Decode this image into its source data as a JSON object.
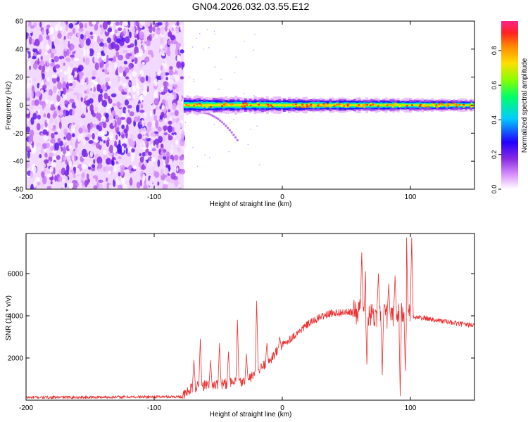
{
  "colors": {
    "snr_line": "#ee3030",
    "colormap": [
      "#ffffff",
      "#dd99ff",
      "#8a2be2",
      "#2200ff",
      "#00ccff",
      "#00ff66",
      "#88ff00",
      "#ffdd00",
      "#ff8800",
      "#ff2222",
      "#ff2288"
    ]
  },
  "chart_data": [
    {
      "type": "heatmap",
      "title": "GN04.2026.032.03.55.E12",
      "xlabel": "Height of straight line (km)",
      "ylabel": "Frequency (Hz)",
      "xlim": [
        -200,
        150
      ],
      "ylim": [
        -60,
        60
      ],
      "xticks": [
        -200,
        -100,
        0,
        100
      ],
      "xtick_labels": [
        "-200",
        "-100",
        "0",
        "100"
      ],
      "yticks": [
        -60,
        -40,
        -20,
        0,
        20,
        40,
        60
      ],
      "ytick_labels": [
        "-60",
        "-40",
        "-20",
        "0",
        "20",
        "40",
        "60"
      ],
      "noise_region_x": [
        -200,
        -77
      ],
      "noise_region_amplitude_range": [
        0.0,
        0.25
      ],
      "signal_band": {
        "x_start": -77,
        "x_end": 150,
        "center_freq_hz": 0,
        "halfwidth_hz_start": 6,
        "halfwidth_hz_end": 4,
        "peak_amplitude": 0.95
      },
      "secondary_streak": {
        "x_start": -65,
        "x_end": -35,
        "freq_start_hz": -5,
        "freq_end_hz": -25
      },
      "colorbar": {
        "label": "Normalized spectral amplitude",
        "range": [
          0,
          0.97
        ],
        "ticks": [
          0.0,
          0.2,
          0.4,
          0.6,
          0.8
        ],
        "tick_labels": [
          "0.0",
          "0.2",
          "0.4",
          "0.6",
          "0.8"
        ]
      }
    },
    {
      "type": "line",
      "xlabel": "Height of straight line (km)",
      "ylabel": "SNR (10 * v/v)",
      "xlim": [
        -200,
        150
      ],
      "ylim": [
        0,
        7900
      ],
      "xticks": [
        -200,
        -100,
        0,
        100
      ],
      "xtick_labels": [
        "-200",
        "-100",
        "0",
        "100"
      ],
      "yticks": [
        2000,
        4000,
        6000
      ],
      "ytick_labels": [
        "2000",
        "4000",
        "6000"
      ],
      "series": [
        {
          "name": "SNR",
          "x": [
            -200,
            -150,
            -100,
            -78,
            -70,
            -60,
            -50,
            -40,
            -30,
            -20,
            -10,
            0,
            10,
            20,
            30,
            40,
            50,
            60,
            70,
            80,
            90,
            95,
            100,
            110,
            120,
            130,
            140,
            150
          ],
          "values": [
            130,
            140,
            160,
            170,
            600,
            700,
            750,
            800,
            850,
            1300,
            1900,
            2600,
            3100,
            3600,
            3950,
            4150,
            4150,
            4200,
            4100,
            4000,
            3900,
            3950,
            3950,
            3900,
            3800,
            3700,
            3600,
            3550
          ],
          "spikes": [
            {
              "x": -69,
              "peak": 1900
            },
            {
              "x": -64,
              "peak": 2900
            },
            {
              "x": -56,
              "peak": 1900
            },
            {
              "x": -49,
              "peak": 2700
            },
            {
              "x": -42,
              "peak": 2300
            },
            {
              "x": -35,
              "peak": 3800
            },
            {
              "x": -28,
              "peak": 2200
            },
            {
              "x": -20,
              "peak": 4700
            },
            {
              "x": -12,
              "peak": 2700
            },
            {
              "x": -2,
              "peak": 3000
            },
            {
              "x": 62,
              "peak": 7000
            },
            {
              "x": 65,
              "peak": 6100
            },
            {
              "x": 75,
              "peak": 6000
            },
            {
              "x": 83,
              "peak": 5500
            },
            {
              "x": 88,
              "peak": 5900
            },
            {
              "x": 92,
              "peak": 7900
            },
            {
              "x": 97,
              "peak": 7700
            },
            {
              "x": 101,
              "peak": 7700
            }
          ],
          "dips": [
            {
              "x": 66,
              "trough": 1700
            },
            {
              "x": 78,
              "trough": 1200
            },
            {
              "x": 92,
              "trough": 200
            },
            {
              "x": 96,
              "trough": 1400
            }
          ]
        }
      ]
    }
  ]
}
